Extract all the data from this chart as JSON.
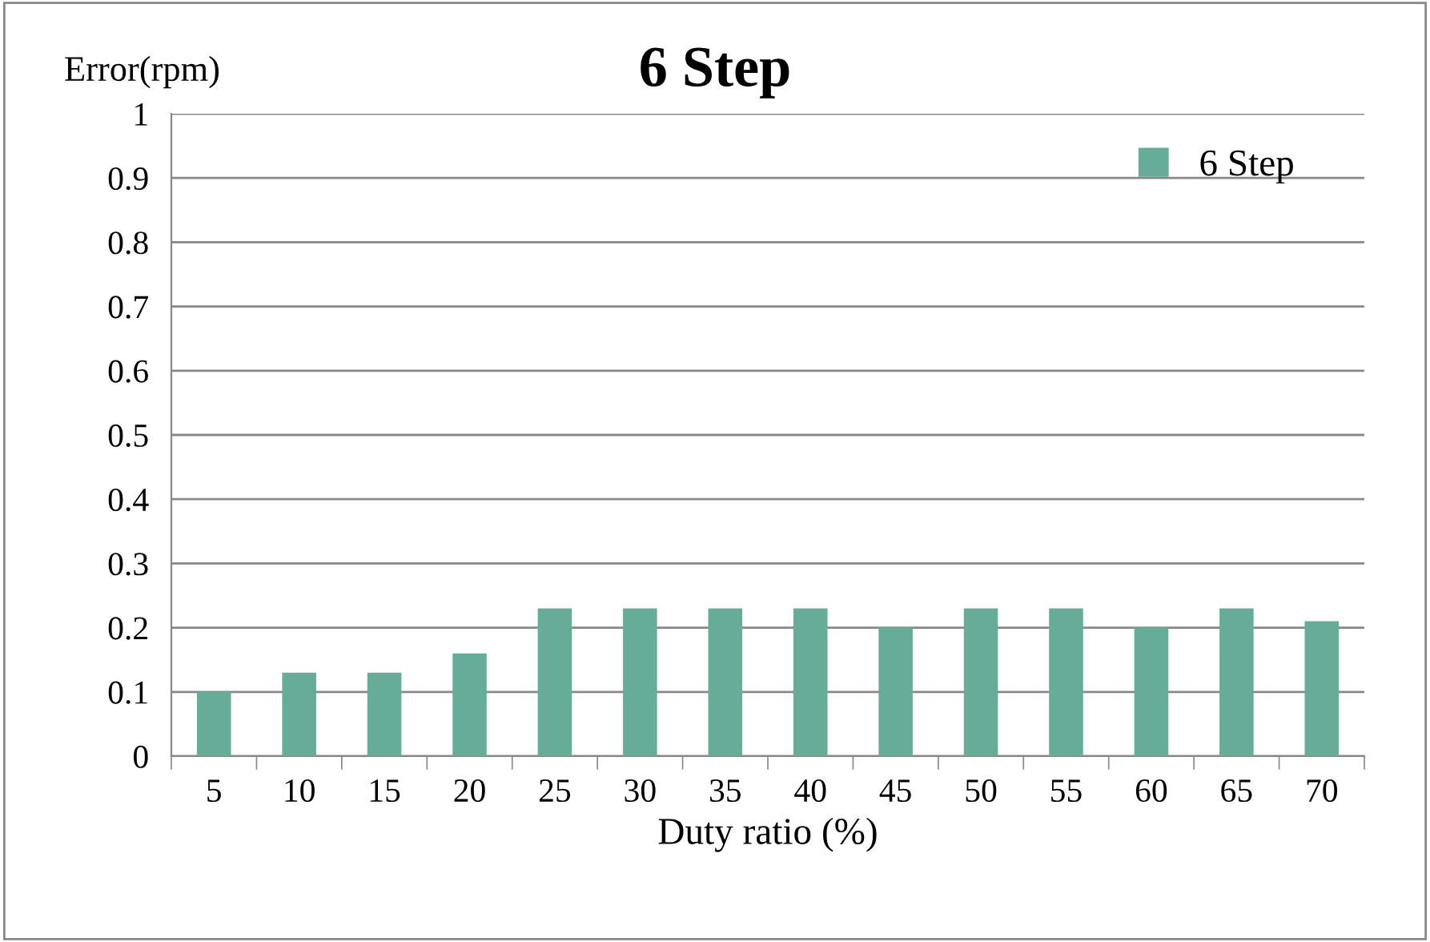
{
  "chart_data": {
    "type": "bar",
    "title": "6 Step",
    "xlabel": "Duty ratio (%)",
    "ylabel": "Error(rpm)",
    "categories": [
      "5",
      "10",
      "15",
      "20",
      "25",
      "30",
      "35",
      "40",
      "45",
      "50",
      "55",
      "60",
      "65",
      "70"
    ],
    "series": [
      {
        "name": "6 Step",
        "color": "#67ac98",
        "values": [
          0.1,
          0.13,
          0.13,
          0.16,
          0.23,
          0.23,
          0.23,
          0.23,
          0.2,
          0.23,
          0.23,
          0.2,
          0.23,
          0.21
        ]
      }
    ],
    "ylim": [
      0,
      1
    ],
    "yticks": [
      0,
      0.1,
      0.2,
      0.3,
      0.4,
      0.5,
      0.6,
      0.7,
      0.8,
      0.9,
      1
    ],
    "grid": "y",
    "legend": "top right"
  }
}
